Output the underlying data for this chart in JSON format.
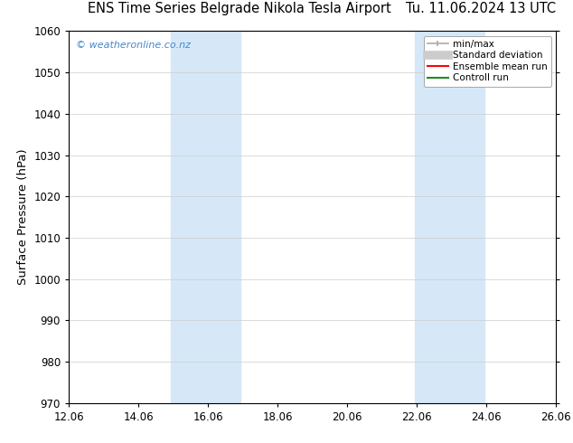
{
  "title_left": "ENS Time Series Belgrade Nikola Tesla Airport",
  "title_right": "Tu. 11.06.2024 13 UTC",
  "ylabel": "Surface Pressure (hPa)",
  "xlim": [
    12.06,
    26.06
  ],
  "ylim": [
    970,
    1060
  ],
  "yticks": [
    970,
    980,
    990,
    1000,
    1010,
    1020,
    1030,
    1040,
    1050,
    1060
  ],
  "xticks": [
    12.06,
    14.06,
    16.06,
    18.06,
    20.06,
    22.06,
    24.06,
    26.06
  ],
  "xtick_labels": [
    "12.06",
    "14.06",
    "16.06",
    "18.06",
    "20.06",
    "22.06",
    "24.06",
    "26.06"
  ],
  "shaded_bands": [
    {
      "x_start": 15.0,
      "x_end": 17.0
    },
    {
      "x_start": 22.0,
      "x_end": 24.0
    }
  ],
  "shade_color": "#d6e8f7",
  "watermark_text": "© weatheronline.co.nz",
  "watermark_color": "#4488cc",
  "background_color": "#ffffff",
  "legend_items": [
    {
      "label": "min/max",
      "color": "#aaaaaa",
      "linestyle": "-",
      "linewidth": 1.2
    },
    {
      "label": "Standard deviation",
      "color": "#cccccc",
      "linestyle": "-",
      "linewidth": 7
    },
    {
      "label": "Ensemble mean run",
      "color": "#ff0000",
      "linestyle": "-",
      "linewidth": 1.5
    },
    {
      "label": "Controll run",
      "color": "#228B22",
      "linestyle": "-",
      "linewidth": 1.5
    }
  ],
  "title_fontsize": 10.5,
  "tick_fontsize": 8.5,
  "ylabel_fontsize": 9.5,
  "grid_color": "#cccccc",
  "grid_linestyle": "-",
  "grid_linewidth": 0.5,
  "border_color": "#000000"
}
